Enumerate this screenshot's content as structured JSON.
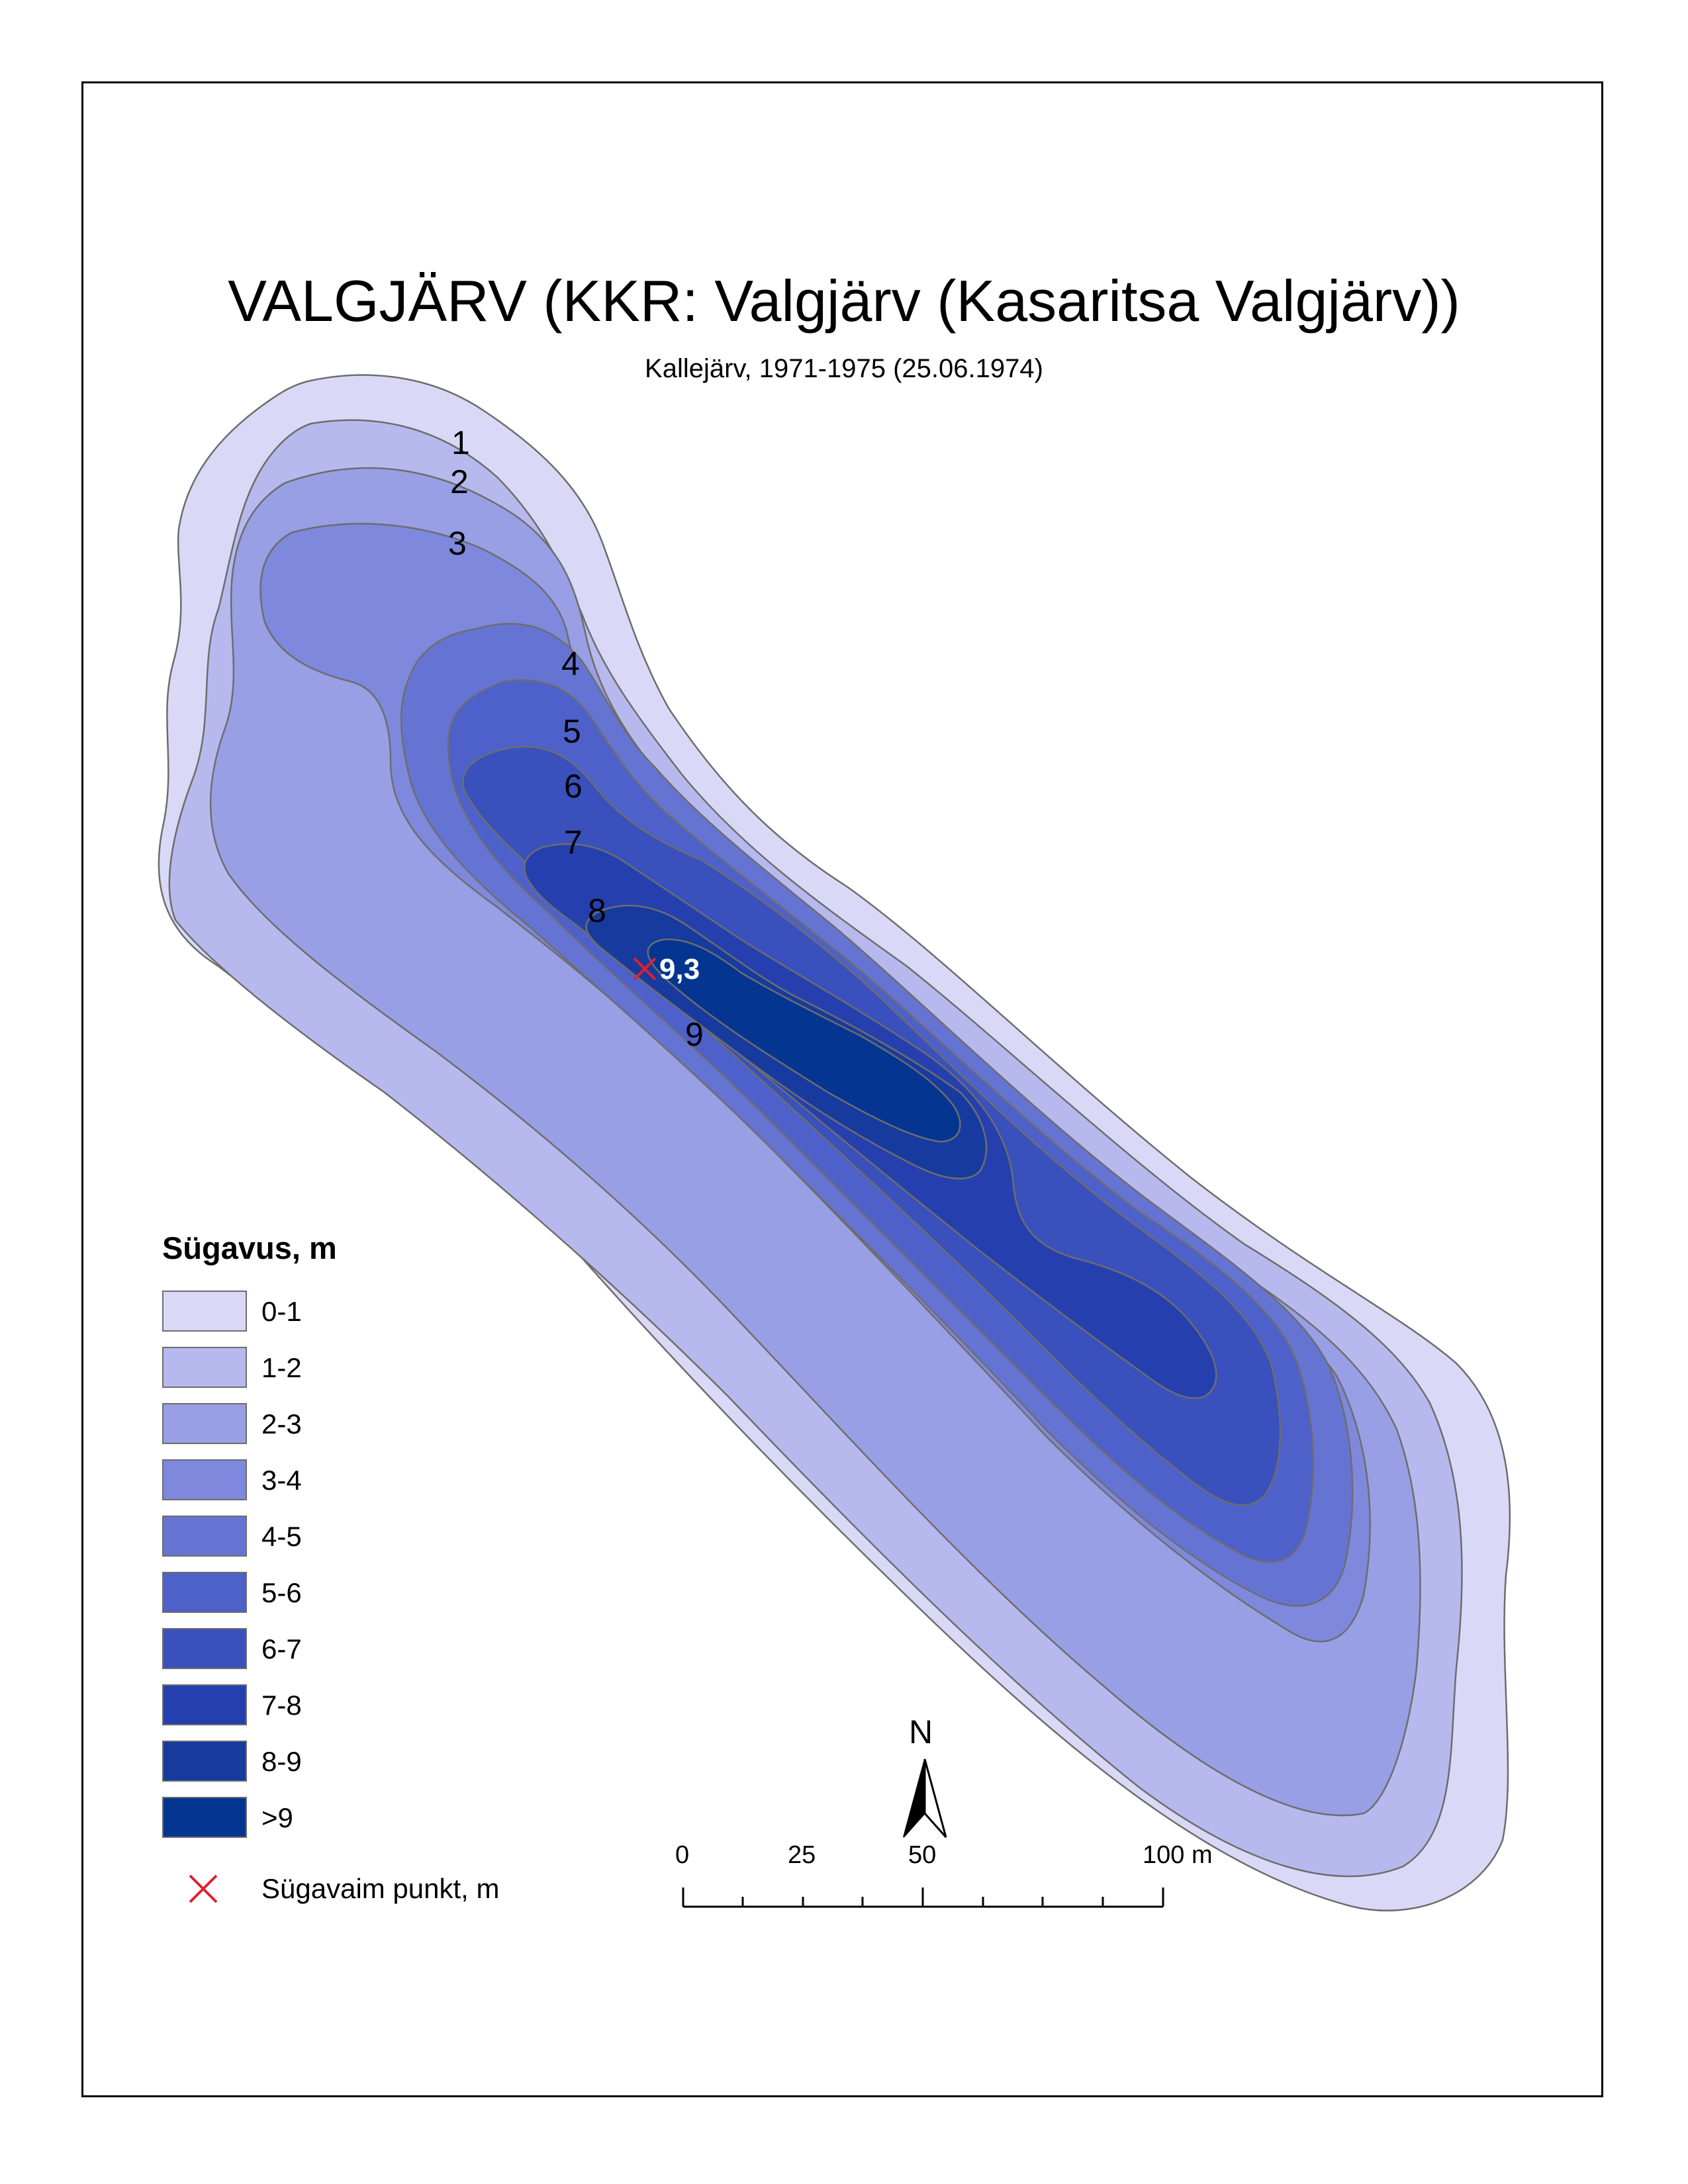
{
  "title": "VALGJÄRV (KKR: Valgjärv (Kasaritsa Valgjärv))",
  "subtitle": "Kallejärv, 1971-1975 (25.06.1974)",
  "contour_labels": [
    "1",
    "2",
    "3",
    "4",
    "5",
    "6",
    "7",
    "8",
    "9"
  ],
  "deepest_point": {
    "value": "9,3",
    "marker_color": "#e0202e"
  },
  "legend": {
    "title": "Sügavus, m",
    "classes": [
      {
        "label": "0-1",
        "color": "#d9d9f7"
      },
      {
        "label": "1-2",
        "color": "#b7b9ee"
      },
      {
        "label": "2-3",
        "color": "#989fe5"
      },
      {
        "label": "3-4",
        "color": "#7e88dc"
      },
      {
        "label": "4-5",
        "color": "#6574d3"
      },
      {
        "label": "5-6",
        "color": "#4e60c9"
      },
      {
        "label": "6-7",
        "color": "#3950bd"
      },
      {
        "label": "7-8",
        "color": "#2540ae"
      },
      {
        "label": "8-9",
        "color": "#173a9f"
      },
      {
        "label": ">9",
        "color": "#033591"
      }
    ],
    "deepest_label": "Sügavaim punkt, m"
  },
  "scale_bar": {
    "labels": [
      "0",
      "25",
      "50",
      "100 m"
    ]
  },
  "north_arrow": {
    "label": "N",
    "icon": "north-arrow-icon"
  }
}
